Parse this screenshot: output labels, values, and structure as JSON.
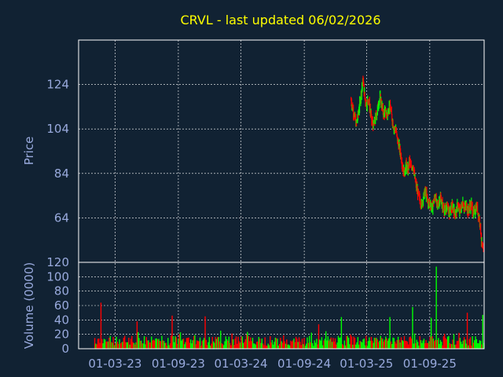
{
  "colors": {
    "background": "#112233",
    "title": "#ffff00",
    "axis_text": "#99aadd",
    "frame": "#ffffff",
    "grid": "#ffffff",
    "up": "#00ff00",
    "down": "#ff0000"
  },
  "chart_data": [
    {
      "type": "line",
      "title": "CRVL - last updated 06/02/2026",
      "ylabel": "Price",
      "ylim": [
        44,
        144
      ],
      "yticks": [
        124,
        104,
        84,
        64
      ],
      "xlim": [
        "2022-11-15",
        "2026-02-06"
      ],
      "grid": true,
      "series": [
        {
          "x": [
            "2025-01-15",
            "2025-01-20",
            "2025-01-25",
            "2025-01-30",
            "2025-02-04",
            "2025-02-09",
            "2025-02-14",
            "2025-02-19",
            "2025-02-24",
            "2025-03-01",
            "2025-03-06",
            "2025-03-11",
            "2025-03-16",
            "2025-03-21",
            "2025-03-26",
            "2025-03-31",
            "2025-04-05",
            "2025-04-10",
            "2025-04-15",
            "2025-04-20",
            "2025-04-25",
            "2025-04-30",
            "2025-05-05",
            "2025-05-10",
            "2025-05-15",
            "2025-05-20",
            "2025-05-25",
            "2025-05-30",
            "2025-06-04",
            "2025-06-09",
            "2025-06-14",
            "2025-06-19",
            "2025-06-24",
            "2025-06-29",
            "2025-07-04",
            "2025-07-09",
            "2025-07-14",
            "2025-07-19",
            "2025-07-24",
            "2025-07-29",
            "2025-08-03",
            "2025-08-08",
            "2025-08-13",
            "2025-08-18",
            "2025-08-23",
            "2025-08-28",
            "2025-09-02",
            "2025-09-07",
            "2025-09-12",
            "2025-09-17",
            "2025-09-22",
            "2025-09-27",
            "2025-10-02",
            "2025-10-07",
            "2025-10-12",
            "2025-10-17",
            "2025-10-22",
            "2025-10-27",
            "2025-11-01",
            "2025-11-06",
            "2025-11-11",
            "2025-11-16",
            "2025-11-21",
            "2025-11-26",
            "2025-12-01",
            "2025-12-06",
            "2025-12-11",
            "2025-12-16",
            "2025-12-21",
            "2025-12-26",
            "2025-12-31",
            "2026-01-05",
            "2026-01-10",
            "2026-01-15",
            "2026-01-20",
            "2026-01-25",
            "2026-01-30",
            "2026-02-04"
          ],
          "values": [
            117,
            113,
            110,
            106,
            110,
            115,
            121,
            126,
            118,
            115,
            118,
            113,
            108,
            105,
            108,
            111,
            116,
            118,
            114,
            111,
            112,
            110,
            114,
            113,
            108,
            104,
            104,
            99,
            96,
            92,
            87,
            84,
            88,
            85,
            90,
            86,
            88,
            82,
            78,
            75,
            72,
            70,
            73,
            76,
            74,
            70,
            71,
            68,
            71,
            74,
            69,
            71,
            73,
            70,
            68,
            67,
            70,
            66,
            68,
            69,
            67,
            66,
            70,
            67,
            68,
            71,
            68,
            70,
            67,
            69,
            70,
            66,
            67,
            69,
            66,
            62,
            52,
            48
          ]
        }
      ]
    },
    {
      "type": "bar",
      "ylabel": "Volume (0000)",
      "ylim": [
        0,
        120
      ],
      "yticks": [
        100,
        80,
        60,
        40,
        20,
        0
      ],
      "xticks": [
        "01-03-23",
        "01-09-23",
        "01-03-24",
        "01-09-24",
        "01-03-25",
        "01-09-25"
      ],
      "spikes": [
        {
          "x": "2023-01-20",
          "value": 64
        },
        {
          "x": "2023-05-05",
          "value": 38
        },
        {
          "x": "2023-08-15",
          "value": 46
        },
        {
          "x": "2023-11-20",
          "value": 45
        },
        {
          "x": "2024-10-15",
          "value": 34
        },
        {
          "x": "2024-12-20",
          "value": 44
        },
        {
          "x": "2025-05-10",
          "value": 44
        },
        {
          "x": "2025-07-15",
          "value": 58
        },
        {
          "x": "2025-09-05",
          "value": 43
        },
        {
          "x": "2025-09-20",
          "value": 114
        },
        {
          "x": "2025-12-20",
          "value": 50
        },
        {
          "x": "2026-02-03",
          "value": 47
        }
      ]
    }
  ]
}
